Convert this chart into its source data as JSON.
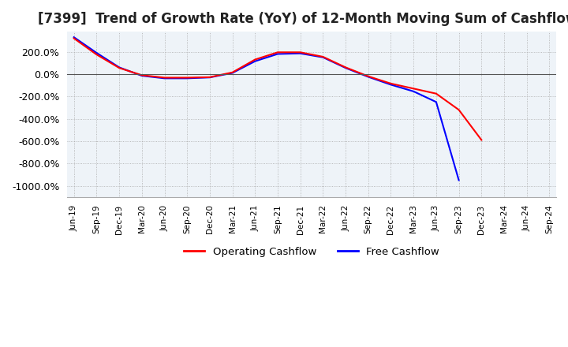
{
  "title": "[7399]  Trend of Growth Rate (YoY) of 12-Month Moving Sum of Cashflows",
  "title_fontsize": 12,
  "ylim": [
    -1100,
    380
  ],
  "yticks": [
    200,
    0,
    -200,
    -400,
    -600,
    -800,
    -1000
  ],
  "ytick_labels": [
    "200.0%",
    "0.0%",
    "-200.0%",
    "-400.0%",
    "-600.0%",
    "-800.0%",
    "-1000.0%"
  ],
  "background_color": "#ffffff",
  "plot_bg_color": "#eef3f8",
  "grid_color": "#aaaaaa",
  "operating_color": "#ff0000",
  "free_color": "#0000ff",
  "legend_labels": [
    "Operating Cashflow",
    "Free Cashflow"
  ],
  "x_labels": [
    "Jun-19",
    "Sep-19",
    "Dec-19",
    "Mar-20",
    "Jun-20",
    "Sep-20",
    "Dec-20",
    "Mar-21",
    "Jun-21",
    "Sep-21",
    "Dec-21",
    "Mar-22",
    "Jun-22",
    "Sep-22",
    "Dec-22",
    "Mar-23",
    "Jun-23",
    "Sep-23",
    "Dec-23",
    "Mar-24",
    "Jun-24",
    "Sep-24"
  ],
  "operating_cashflow": [
    320,
    175,
    55,
    -10,
    -32,
    -32,
    -28,
    15,
    130,
    195,
    195,
    155,
    60,
    -20,
    -85,
    -130,
    -175,
    -320,
    -590,
    null,
    null,
    null
  ],
  "free_cashflow": [
    330,
    190,
    60,
    -15,
    -38,
    -38,
    -30,
    10,
    115,
    180,
    185,
    150,
    55,
    -25,
    -95,
    -155,
    -250,
    -950,
    null,
    null,
    null,
    null
  ]
}
